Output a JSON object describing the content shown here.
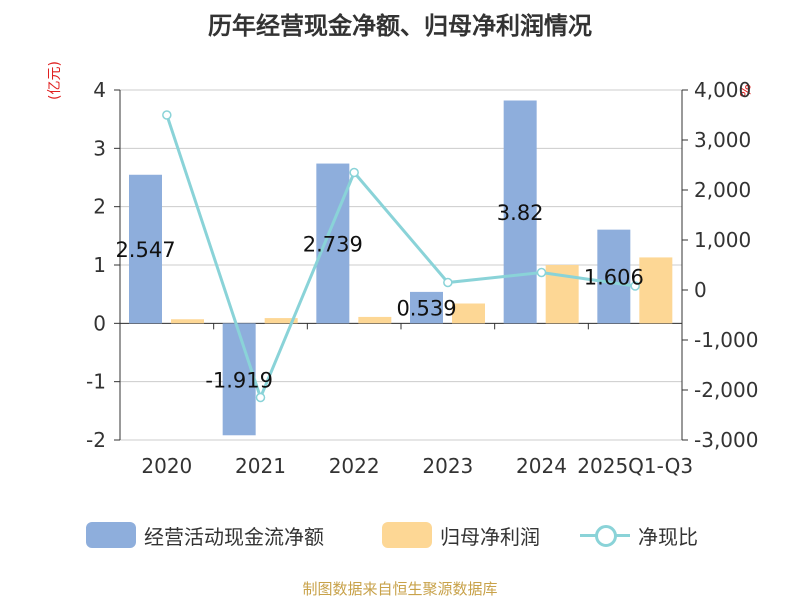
{
  "title": "历年经营现金净额、归母净利润情况",
  "footer": "制图数据来自恒生聚源数据库",
  "units": {
    "left": "(亿元)",
    "right": "%"
  },
  "chart_data": {
    "type": "bar",
    "categories": [
      "2020",
      "2021",
      "2022",
      "2023",
      "2024",
      "2025Q1-Q3"
    ],
    "series": [
      {
        "name": "经营活动现金流净额",
        "type": "bar",
        "axis": "left",
        "color": "#8eaedc",
        "values": [
          2.547,
          -1.919,
          2.739,
          0.539,
          3.82,
          1.606
        ],
        "labels": [
          "2.547",
          "-1.919",
          "2.739",
          "0.539",
          "3.82",
          "1.606"
        ]
      },
      {
        "name": "归母净利润",
        "type": "bar",
        "axis": "left",
        "color": "#fdd795",
        "values": [
          0.07,
          0.09,
          0.11,
          0.34,
          1.0,
          1.13
        ]
      },
      {
        "name": "净现比",
        "type": "line",
        "axis": "right",
        "color": "#8ad3d8",
        "values": [
          3500,
          -2150,
          2350,
          150,
          350,
          80
        ]
      }
    ],
    "y_left": {
      "ylim": [
        -2,
        4
      ],
      "ticks": [
        "-2",
        "-1",
        "0",
        "1",
        "2",
        "3",
        "4"
      ]
    },
    "y_right": {
      "ylim": [
        -3000,
        4000
      ],
      "ticks": [
        "-3,000",
        "-2,000",
        "-1,000",
        "0",
        "1,000",
        "2,000",
        "3,000",
        "4,000"
      ]
    },
    "grid": true,
    "legend": "bottom"
  }
}
